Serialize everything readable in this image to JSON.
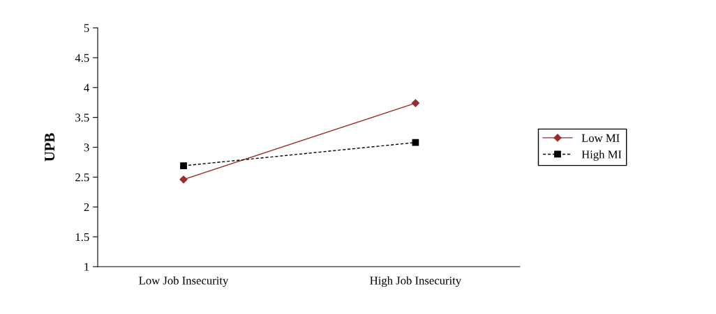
{
  "chart_data": {
    "type": "line",
    "ylabel": "UPB",
    "categories": [
      "Low Job Insecurity",
      "High Job Insecurity"
    ],
    "series": [
      {
        "name": "Low MI",
        "color": "#9b2c2c",
        "values": [
          2.46,
          3.74
        ],
        "marker": "diamond",
        "line_style": "solid"
      },
      {
        "name": "High MI",
        "color": "#000000",
        "values": [
          2.69,
          3.08
        ],
        "marker": "square",
        "line_style": "dashed"
      }
    ],
    "ylim": [
      1,
      5
    ],
    "yticks": [
      1,
      1.5,
      2,
      2.5,
      3,
      3.5,
      4,
      4.5,
      5
    ],
    "grid": false,
    "legend": "right"
  }
}
